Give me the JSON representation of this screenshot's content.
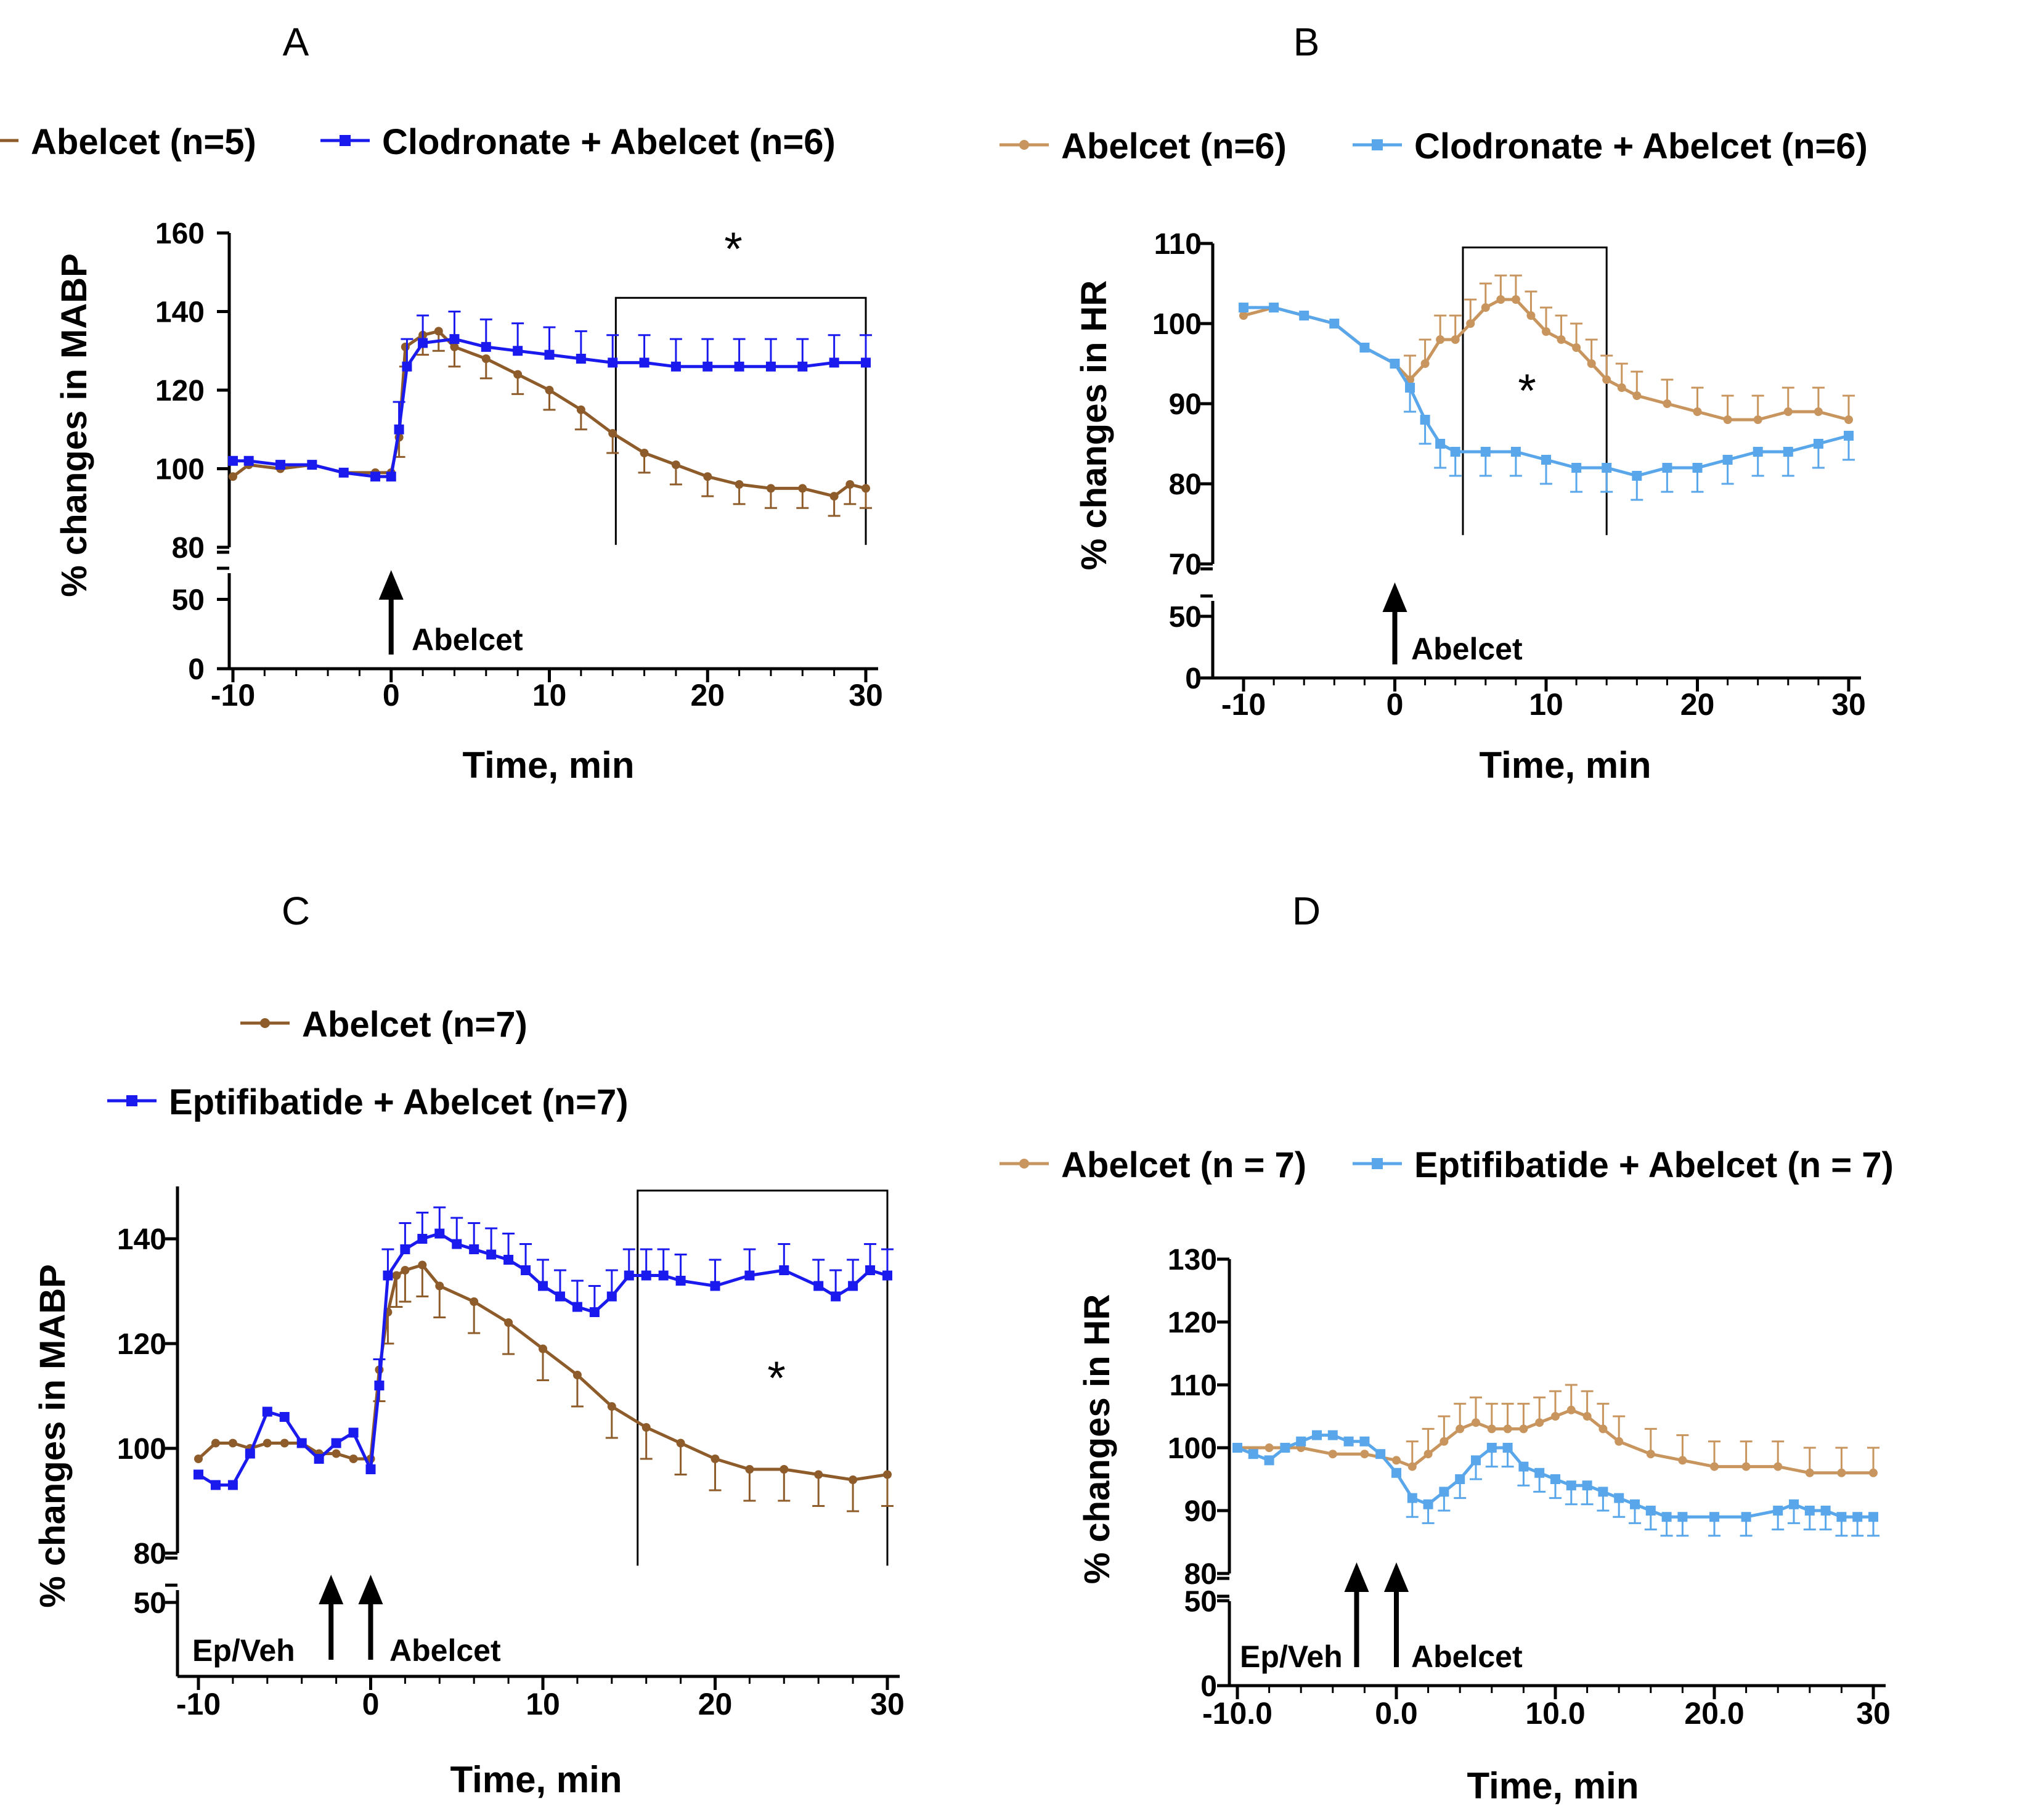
{
  "colors": {
    "brown": "#8E5C2A",
    "tan": "#C8955E",
    "blue": "#1A1AEE",
    "lightblue": "#59A7EA"
  },
  "chart_data": [
    {
      "id": "A",
      "panel_label": "A",
      "type": "line",
      "ylabel": "% changes in MABP",
      "xlabel": "Time, min",
      "xlim": [
        -10,
        30
      ],
      "xticks": [
        "-10",
        "0",
        "10",
        "20",
        "30"
      ],
      "ylim_upper": [
        80,
        160
      ],
      "yticks_upper": [
        "80",
        "100",
        "120",
        "140",
        "160"
      ],
      "ylim_lower": [
        0,
        60
      ],
      "yticks_lower": [
        "0",
        "50"
      ],
      "annotations": {
        "arrow_labels": [
          "Abelcet"
        ],
        "star": "*"
      },
      "series": [
        {
          "name": "Abelcet (n=5)",
          "color_key": "brown",
          "marker": "circle",
          "sem_dir": "down",
          "sem": 5,
          "points": [
            [
              -10,
              98
            ],
            [
              -9,
              101
            ],
            [
              -7,
              100
            ],
            [
              -5,
              101
            ],
            [
              -3,
              99
            ],
            [
              -1,
              99
            ],
            [
              0,
              99
            ],
            [
              0.5,
              108
            ],
            [
              0.9,
              131
            ],
            [
              2,
              134
            ],
            [
              3,
              135
            ],
            [
              4,
              131
            ],
            [
              6,
              128
            ],
            [
              8,
              124
            ],
            [
              10,
              120
            ],
            [
              12,
              115
            ],
            [
              14,
              109
            ],
            [
              16,
              104
            ],
            [
              18,
              101
            ],
            [
              20,
              98
            ],
            [
              22,
              96
            ],
            [
              24,
              95
            ],
            [
              26,
              95
            ],
            [
              28,
              93
            ],
            [
              29,
              96
            ],
            [
              30,
              95
            ]
          ]
        },
        {
          "name": "Clodronate + Abelcet (n=6)",
          "color_key": "blue",
          "marker": "square",
          "sem_dir": "up",
          "sem": 7,
          "points": [
            [
              -10,
              102
            ],
            [
              -9,
              102
            ],
            [
              -7,
              101
            ],
            [
              -5,
              101
            ],
            [
              -3,
              99
            ],
            [
              -1,
              98
            ],
            [
              0,
              98
            ],
            [
              0.5,
              110
            ],
            [
              1,
              126
            ],
            [
              2,
              132
            ],
            [
              4,
              133
            ],
            [
              6,
              131
            ],
            [
              8,
              130
            ],
            [
              10,
              129
            ],
            [
              12,
              128
            ],
            [
              14,
              127
            ],
            [
              16,
              127
            ],
            [
              18,
              126
            ],
            [
              20,
              126
            ],
            [
              22,
              126
            ],
            [
              24,
              126
            ],
            [
              26,
              126
            ],
            [
              28,
              127
            ],
            [
              30,
              127
            ]
          ]
        }
      ]
    },
    {
      "id": "B",
      "panel_label": "B",
      "type": "line",
      "ylabel": "% changes in HR",
      "xlabel": "Time, min",
      "xlim": [
        -10,
        30
      ],
      "xticks": [
        "-10",
        "0",
        "10",
        "20",
        "30"
      ],
      "ylim_upper": [
        70,
        110
      ],
      "yticks_upper": [
        "70",
        "80",
        "90",
        "100",
        "110"
      ],
      "ylim_lower": [
        0,
        65
      ],
      "yticks_lower": [
        "0",
        "50"
      ],
      "annotations": {
        "arrow_labels": [
          "Abelcet"
        ],
        "star": "*"
      },
      "series": [
        {
          "name": "Abelcet (n=6)",
          "color_key": "tan",
          "marker": "circle",
          "sem_dir": "up",
          "sem": 3,
          "points": [
            [
              -10,
              101
            ],
            [
              -8,
              102
            ],
            [
              -6,
              101
            ],
            [
              -4,
              100
            ],
            [
              -2,
              97
            ],
            [
              0,
              95
            ],
            [
              1,
              93
            ],
            [
              2,
              95
            ],
            [
              3,
              98
            ],
            [
              4,
              98
            ],
            [
              5,
              100
            ],
            [
              6,
              102
            ],
            [
              7,
              103
            ],
            [
              8,
              103
            ],
            [
              9,
              101
            ],
            [
              10,
              99
            ],
            [
              11,
              98
            ],
            [
              12,
              97
            ],
            [
              13,
              95
            ],
            [
              14,
              93
            ],
            [
              15,
              92
            ],
            [
              16,
              91
            ],
            [
              18,
              90
            ],
            [
              20,
              89
            ],
            [
              22,
              88
            ],
            [
              24,
              88
            ],
            [
              26,
              89
            ],
            [
              28,
              89
            ],
            [
              30,
              88
            ]
          ]
        },
        {
          "name": "Clodronate + Abelcet (n=6)",
          "color_key": "lightblue",
          "marker": "square",
          "sem_dir": "down",
          "sem": 3,
          "points": [
            [
              -10,
              102
            ],
            [
              -8,
              102
            ],
            [
              -6,
              101
            ],
            [
              -4,
              100
            ],
            [
              -2,
              97
            ],
            [
              0,
              95
            ],
            [
              1,
              92
            ],
            [
              2,
              88
            ],
            [
              3,
              85
            ],
            [
              4,
              84
            ],
            [
              6,
              84
            ],
            [
              8,
              84
            ],
            [
              10,
              83
            ],
            [
              12,
              82
            ],
            [
              14,
              82
            ],
            [
              16,
              81
            ],
            [
              18,
              82
            ],
            [
              20,
              82
            ],
            [
              22,
              83
            ],
            [
              24,
              84
            ],
            [
              26,
              84
            ],
            [
              28,
              85
            ],
            [
              30,
              86
            ]
          ]
        }
      ]
    },
    {
      "id": "C",
      "panel_label": "C",
      "type": "line",
      "ylabel": "% changes in MABP",
      "xlabel": "Time, min",
      "xlim": [
        -10,
        30
      ],
      "xticks": [
        "-10",
        "0",
        "10",
        "20",
        "30"
      ],
      "ylim_upper": [
        80,
        150
      ],
      "yticks_upper": [
        "80",
        "100",
        "120",
        "140"
      ],
      "ylim_lower": [
        30,
        60
      ],
      "yticks_lower": [
        "50"
      ],
      "annotations": {
        "arrow_labels": [
          "Ep/Veh",
          "Abelcet"
        ],
        "star": "*"
      },
      "series": [
        {
          "name": "Abelcet (n=7)",
          "color_key": "brown",
          "marker": "circle",
          "sem_dir": "down",
          "sem": 6,
          "points": [
            [
              -10,
              98
            ],
            [
              -9,
              101
            ],
            [
              -8,
              101
            ],
            [
              -7,
              100
            ],
            [
              -6,
              101
            ],
            [
              -5,
              101
            ],
            [
              -4,
              101
            ],
            [
              -3,
              99
            ],
            [
              -2,
              99
            ],
            [
              -1,
              98
            ],
            [
              0,
              98
            ],
            [
              0.5,
              115
            ],
            [
              1,
              126
            ],
            [
              1.5,
              133
            ],
            [
              2,
              134
            ],
            [
              3,
              135
            ],
            [
              4,
              131
            ],
            [
              6,
              128
            ],
            [
              8,
              124
            ],
            [
              10,
              119
            ],
            [
              12,
              114
            ],
            [
              14,
              108
            ],
            [
              16,
              104
            ],
            [
              18,
              101
            ],
            [
              20,
              98
            ],
            [
              22,
              96
            ],
            [
              24,
              96
            ],
            [
              26,
              95
            ],
            [
              28,
              94
            ],
            [
              30,
              95
            ]
          ]
        },
        {
          "name": "Eptifibatide + Abelcet (n=7)",
          "color_key": "blue",
          "marker": "square",
          "sem_dir": "up",
          "sem": 5,
          "points": [
            [
              -10,
              95
            ],
            [
              -9,
              93
            ],
            [
              -8,
              93
            ],
            [
              -7,
              99
            ],
            [
              -6,
              107
            ],
            [
              -5,
              106
            ],
            [
              -4,
              101
            ],
            [
              -3,
              98
            ],
            [
              -2,
              101
            ],
            [
              -1,
              103
            ],
            [
              0,
              96
            ],
            [
              0.5,
              112
            ],
            [
              1,
              133
            ],
            [
              2,
              138
            ],
            [
              3,
              140
            ],
            [
              4,
              141
            ],
            [
              5,
              139
            ],
            [
              6,
              138
            ],
            [
              7,
              137
            ],
            [
              8,
              136
            ],
            [
              9,
              134
            ],
            [
              10,
              131
            ],
            [
              11,
              129
            ],
            [
              12,
              127
            ],
            [
              13,
              126
            ],
            [
              14,
              129
            ],
            [
              15,
              133
            ],
            [
              16,
              133
            ],
            [
              17,
              133
            ],
            [
              18,
              132
            ],
            [
              20,
              131
            ],
            [
              22,
              133
            ],
            [
              24,
              134
            ],
            [
              26,
              131
            ],
            [
              27,
              129
            ],
            [
              28,
              131
            ],
            [
              29,
              134
            ],
            [
              30,
              133
            ]
          ]
        }
      ]
    },
    {
      "id": "D",
      "panel_label": "D",
      "type": "line",
      "ylabel": "% changes in HR",
      "xlabel": "Time, min",
      "xlim": [
        -10,
        30
      ],
      "xticks": [
        "-10.0",
        "0.0",
        "10.0",
        "20.0",
        "30"
      ],
      "ylim_upper": [
        80,
        130
      ],
      "yticks_upper": [
        "80",
        "90",
        "100",
        "110",
        "120",
        "130"
      ],
      "ylim_lower": [
        0,
        65
      ],
      "yticks_lower": [
        "0",
        "50"
      ],
      "annotations": {
        "arrow_labels": [
          "Ep/Veh",
          "Abelcet"
        ],
        "star": ""
      },
      "series": [
        {
          "name": "Abelcet (n = 7)",
          "color_key": "tan",
          "marker": "circle",
          "sem_dir": "up",
          "sem": 4,
          "points": [
            [
              -10,
              100
            ],
            [
              -8,
              100
            ],
            [
              -6,
              100
            ],
            [
              -4,
              99
            ],
            [
              -2,
              99
            ],
            [
              0,
              98
            ],
            [
              1,
              97
            ],
            [
              2,
              99
            ],
            [
              3,
              101
            ],
            [
              4,
              103
            ],
            [
              5,
              104
            ],
            [
              6,
              103
            ],
            [
              7,
              103
            ],
            [
              8,
              103
            ],
            [
              9,
              104
            ],
            [
              10,
              105
            ],
            [
              11,
              106
            ],
            [
              12,
              105
            ],
            [
              13,
              103
            ],
            [
              14,
              101
            ],
            [
              16,
              99
            ],
            [
              18,
              98
            ],
            [
              20,
              97
            ],
            [
              22,
              97
            ],
            [
              24,
              97
            ],
            [
              26,
              96
            ],
            [
              28,
              96
            ],
            [
              30,
              96
            ]
          ]
        },
        {
          "name": "Eptifibatide + Abelcet (n = 7)",
          "color_key": "lightblue",
          "marker": "square",
          "sem_dir": "down",
          "sem": 3,
          "points": [
            [
              -10,
              100
            ],
            [
              -9,
              99
            ],
            [
              -8,
              98
            ],
            [
              -7,
              100
            ],
            [
              -6,
              101
            ],
            [
              -5,
              102
            ],
            [
              -4,
              102
            ],
            [
              -3,
              101
            ],
            [
              -2,
              101
            ],
            [
              -1,
              99
            ],
            [
              0,
              96
            ],
            [
              1,
              92
            ],
            [
              2,
              91
            ],
            [
              3,
              93
            ],
            [
              4,
              95
            ],
            [
              5,
              98
            ],
            [
              6,
              100
            ],
            [
              7,
              100
            ],
            [
              8,
              97
            ],
            [
              9,
              96
            ],
            [
              10,
              95
            ],
            [
              11,
              94
            ],
            [
              12,
              94
            ],
            [
              13,
              93
            ],
            [
              14,
              92
            ],
            [
              15,
              91
            ],
            [
              16,
              90
            ],
            [
              17,
              89
            ],
            [
              18,
              89
            ],
            [
              20,
              89
            ],
            [
              22,
              89
            ],
            [
              24,
              90
            ],
            [
              25,
              91
            ],
            [
              26,
              90
            ],
            [
              27,
              90
            ],
            [
              28,
              89
            ],
            [
              29,
              89
            ],
            [
              30,
              89
            ]
          ]
        }
      ]
    }
  ]
}
